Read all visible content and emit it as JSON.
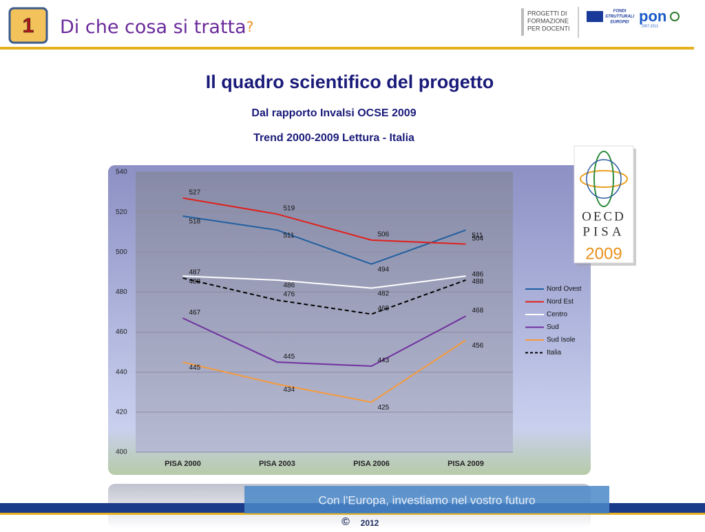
{
  "page": {
    "slide_number": "1",
    "heading": "Di che cosa si tratta",
    "heading_mark": "?",
    "logo_lines": [
      "PROGETTI DI",
      "FORMAZIONE",
      "PER DOCENTI"
    ],
    "fondi_lines": [
      "FONDI",
      "STRUTTURALI",
      "EUROPEI"
    ],
    "pon": "pon",
    "pon_years": "2007-2013",
    "pisa_logo": [
      "OECD",
      "PISA",
      "2009"
    ],
    "footer": "Con l'Europa, investiamo nel vostro futuro",
    "copyright": "©",
    "year": "2012"
  },
  "chart_data": {
    "type": "line",
    "title": "Il quadro scientifico del progetto",
    "subtitle": [
      "Dal rapporto Invalsi OCSE 2009",
      "Trend 2000-2009 Lettura - Italia"
    ],
    "categories": [
      "PISA 2000",
      "PISA 2003",
      "PISA 2006",
      "PISA 2009"
    ],
    "series": [
      {
        "name": "Nord Ovest",
        "color": "#1f5fa0",
        "values": [
          518,
          511,
          494,
          511
        ]
      },
      {
        "name": "Nord Est",
        "color": "#e0201c",
        "values": [
          527,
          519,
          506,
          504
        ]
      },
      {
        "name": "Centro",
        "color": "#ffffff",
        "values": [
          488,
          486,
          482,
          488
        ]
      },
      {
        "name": "Sud",
        "color": "#7030a0",
        "values": [
          467,
          445,
          443,
          468
        ]
      },
      {
        "name": "Sud Isole",
        "color": "#f79a3a",
        "values": [
          445,
          434,
          425,
          456
        ]
      },
      {
        "name": "Italia",
        "color": "#000000",
        "dashed": true,
        "values": [
          487,
          476,
          469,
          486
        ]
      }
    ],
    "ylim": [
      400,
      540
    ],
    "yticks": [
      400,
      420,
      440,
      460,
      480,
      500,
      520,
      540
    ],
    "grid": true,
    "legend": "right"
  }
}
